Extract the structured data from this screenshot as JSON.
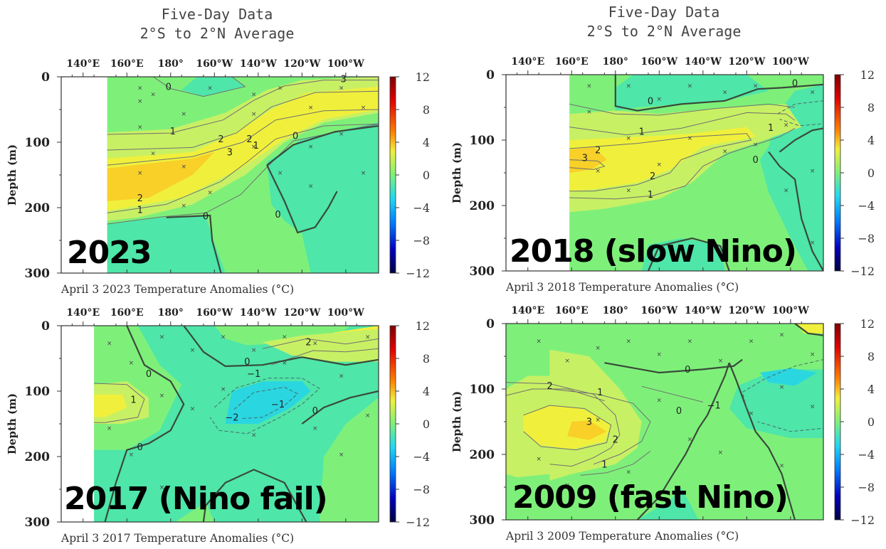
{
  "headers": {
    "left": {
      "line1": "Five-Day Data",
      "line2": "2°S to 2°N Average"
    },
    "right": {
      "line1": "Five-Day Data",
      "line2": "2°S to 2°N Average"
    }
  },
  "colors": {
    "background_anomaly": "#7ef07a",
    "cool": "#4ee6a9",
    "cooler": "#2ad6e0",
    "warm": "#c8f064",
    "warmer": "#f0f03c",
    "hot": "#f8d028",
    "land": "#ffffff"
  },
  "chart_data": [
    {
      "type": "heatmap",
      "id": "p2023",
      "big_label": "2023",
      "caption": "April 3 2023 Temperature Anomalies (°C)",
      "xticks": [
        "140°E",
        "160°E",
        "180°",
        "160°W",
        "140°W",
        "120°W",
        "100°W"
      ],
      "ylabel": "Depth (m)",
      "yticks": [
        "0",
        "100",
        "200",
        "300"
      ],
      "ylim": [
        0,
        300
      ],
      "colorbar": {
        "ticks": [
          "12",
          "8",
          "4",
          "0",
          "−4",
          "−8",
          "−12"
        ],
        "range": [
          -12,
          12
        ]
      },
      "contour_labels": [
        {
          "text": "0",
          "lon": 179,
          "depth": 20
        },
        {
          "text": "1",
          "lon": 181,
          "depth": 88
        },
        {
          "text": "2",
          "lon": 203,
          "depth": 100
        },
        {
          "text": "3",
          "lon": 207,
          "depth": 120
        },
        {
          "text": "3",
          "lon": 259,
          "depth": 8
        },
        {
          "text": "2",
          "lon": 216,
          "depth": 100
        },
        {
          "text": "1",
          "lon": 219,
          "depth": 110
        },
        {
          "text": "0",
          "lon": 237,
          "depth": 95
        },
        {
          "text": "2",
          "lon": 166,
          "depth": 190
        },
        {
          "text": "1",
          "lon": 166,
          "depth": 208
        },
        {
          "text": "0",
          "lon": 196,
          "depth": 218
        },
        {
          "text": "0",
          "lon": 229,
          "depth": 215
        }
      ]
    },
    {
      "type": "heatmap",
      "id": "p2018",
      "big_label": "2018 (slow Nino)",
      "caption": "April 3 2018 Temperature Anomalies (°C)",
      "xticks": [
        "140°E",
        "160°E",
        "180°",
        "160°W",
        "140°W",
        "120°W",
        "100°W"
      ],
      "ylabel": "Depth (m)",
      "yticks": [
        "0",
        "100",
        "200",
        "300"
      ],
      "ylim": [
        0,
        300
      ],
      "colorbar": {
        "ticks": [
          "12",
          "8",
          "4",
          "0",
          "−4",
          "−8",
          "−12"
        ],
        "range": [
          -12,
          12
        ]
      },
      "contour_labels": [
        {
          "text": "0",
          "lon": 196,
          "depth": 45
        },
        {
          "text": "1",
          "lon": 192,
          "depth": 92
        },
        {
          "text": "2",
          "lon": 172,
          "depth": 120
        },
        {
          "text": "3",
          "lon": 166,
          "depth": 132
        },
        {
          "text": "2",
          "lon": 197,
          "depth": 160
        },
        {
          "text": "1",
          "lon": 196,
          "depth": 188
        },
        {
          "text": "0",
          "lon": 262,
          "depth": 18
        },
        {
          "text": "1",
          "lon": 251,
          "depth": 86
        },
        {
          "text": "0",
          "lon": 244,
          "depth": 135
        }
      ]
    },
    {
      "type": "heatmap",
      "id": "p2017",
      "big_label": "2017 (Nino fail)",
      "caption": "April 3 2017 Temperature Anomalies (°C)",
      "xticks": [
        "140°E",
        "160°E",
        "180°",
        "160°W",
        "140°W",
        "120°W",
        "100°W"
      ],
      "ylabel": "Depth (m)",
      "yticks": [
        "0",
        "100",
        "200",
        "300"
      ],
      "ylim": [
        0,
        300
      ],
      "colorbar": {
        "ticks": [
          "12",
          "8",
          "4",
          "0",
          "−4",
          "−8",
          "−12"
        ],
        "range": [
          -12,
          12
        ]
      },
      "contour_labels": [
        {
          "text": "0",
          "lon": 170,
          "depth": 78
        },
        {
          "text": "1",
          "lon": 163,
          "depth": 118
        },
        {
          "text": "0",
          "lon": 166,
          "depth": 190
        },
        {
          "text": "0",
          "lon": 215,
          "depth": 60
        },
        {
          "text": "−1",
          "lon": 218,
          "depth": 78
        },
        {
          "text": "−2",
          "lon": 208,
          "depth": 145
        },
        {
          "text": "−1",
          "lon": 229,
          "depth": 125
        },
        {
          "text": "2",
          "lon": 243,
          "depth": 30
        },
        {
          "text": "0",
          "lon": 246,
          "depth": 135
        }
      ]
    },
    {
      "type": "heatmap",
      "id": "p2009",
      "big_label": "2009 (fast Nino)",
      "caption": "April 3 2009 Temperature Anomalies (°C)",
      "xticks": [
        "140°E",
        "160°E",
        "180°",
        "160°W",
        "140°W",
        "120°W",
        "100°W"
      ],
      "ylabel": "Depth (m)",
      "yticks": [
        "0",
        "100",
        "200",
        "300"
      ],
      "ylim": [
        0,
        300
      ],
      "colorbar": {
        "ticks": [
          "12",
          "8",
          "4",
          "0",
          "−4",
          "−8",
          "−12"
        ],
        "range": [
          -12,
          12
        ]
      },
      "contour_labels": [
        {
          "text": "2",
          "lon": 150,
          "depth": 100
        },
        {
          "text": "3",
          "lon": 168,
          "depth": 155
        },
        {
          "text": "1",
          "lon": 173,
          "depth": 110
        },
        {
          "text": "2",
          "lon": 180,
          "depth": 182
        },
        {
          "text": "1",
          "lon": 175,
          "depth": 220
        },
        {
          "text": "0",
          "lon": 213,
          "depth": 75
        },
        {
          "text": "0",
          "lon": 209,
          "depth": 138
        },
        {
          "text": "−1",
          "lon": 225,
          "depth": 130
        }
      ]
    }
  ]
}
